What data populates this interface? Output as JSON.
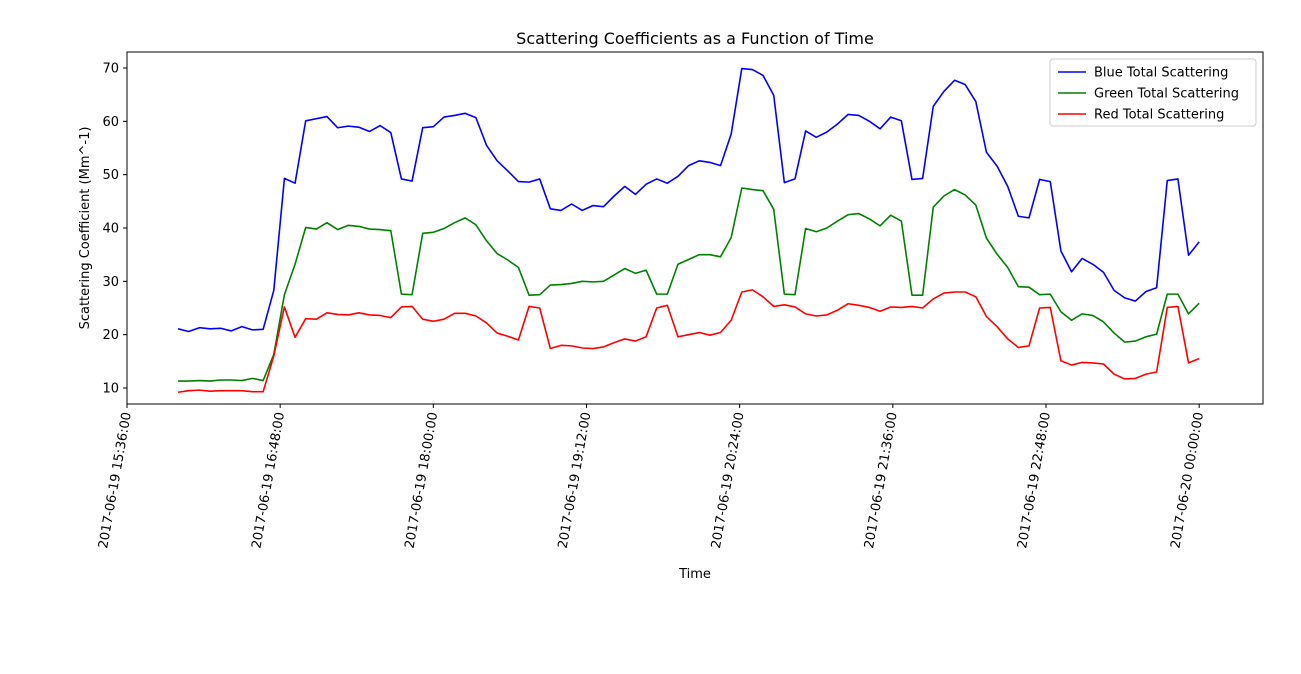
{
  "chart_data": {
    "type": "line",
    "title": "Scattering Coefficients as a Function of Time",
    "xlabel": "Time",
    "ylabel": "Scattering Coefficient (Mm^-1)",
    "xlim": [
      "2017-06-19 15:36:00",
      "2017-06-20 00:30:00"
    ],
    "ylim": [
      7,
      73
    ],
    "x_ticks": [
      "2017-06-19 15:36:00",
      "2017-06-19 16:48:00",
      "2017-06-19 18:00:00",
      "2017-06-19 19:12:00",
      "2017-06-19 20:24:00",
      "2017-06-19 21:36:00",
      "2017-06-19 22:48:00",
      "2017-06-20 00:00:00"
    ],
    "y_ticks": [
      10,
      20,
      30,
      40,
      50,
      60,
      70
    ],
    "legend_position": "top-right",
    "grid": false,
    "x": [
      "2017-06-19 16:00:00",
      "2017-06-19 16:05:00",
      "2017-06-19 16:10:00",
      "2017-06-19 16:15:00",
      "2017-06-19 16:20:00",
      "2017-06-19 16:25:00",
      "2017-06-19 16:30:00",
      "2017-06-19 16:35:00",
      "2017-06-19 16:40:00",
      "2017-06-19 16:45:00",
      "2017-06-19 16:50:00",
      "2017-06-19 16:55:00",
      "2017-06-19 17:00:00",
      "2017-06-19 17:05:00",
      "2017-06-19 17:10:00",
      "2017-06-19 17:15:00",
      "2017-06-19 17:20:00",
      "2017-06-19 17:25:00",
      "2017-06-19 17:30:00",
      "2017-06-19 17:35:00",
      "2017-06-19 17:40:00",
      "2017-06-19 17:45:00",
      "2017-06-19 17:50:00",
      "2017-06-19 17:55:00",
      "2017-06-19 18:00:00",
      "2017-06-19 18:05:00",
      "2017-06-19 18:10:00",
      "2017-06-19 18:15:00",
      "2017-06-19 18:20:00",
      "2017-06-19 18:25:00",
      "2017-06-19 18:30:00",
      "2017-06-19 18:35:00",
      "2017-06-19 18:40:00",
      "2017-06-19 18:45:00",
      "2017-06-19 18:50:00",
      "2017-06-19 18:55:00",
      "2017-06-19 19:00:00",
      "2017-06-19 19:05:00",
      "2017-06-19 19:10:00",
      "2017-06-19 19:15:00",
      "2017-06-19 19:20:00",
      "2017-06-19 19:25:00",
      "2017-06-19 19:30:00",
      "2017-06-19 19:35:00",
      "2017-06-19 19:40:00",
      "2017-06-19 19:45:00",
      "2017-06-19 19:50:00",
      "2017-06-19 19:55:00",
      "2017-06-19 20:00:00",
      "2017-06-19 20:05:00",
      "2017-06-19 20:10:00",
      "2017-06-19 20:15:00",
      "2017-06-19 20:20:00",
      "2017-06-19 20:25:00",
      "2017-06-19 20:30:00",
      "2017-06-19 20:35:00",
      "2017-06-19 20:40:00",
      "2017-06-19 20:45:00",
      "2017-06-19 20:50:00",
      "2017-06-19 20:55:00",
      "2017-06-19 21:00:00",
      "2017-06-19 21:05:00",
      "2017-06-19 21:10:00",
      "2017-06-19 21:15:00",
      "2017-06-19 21:20:00",
      "2017-06-19 21:25:00",
      "2017-06-19 21:30:00",
      "2017-06-19 21:35:00",
      "2017-06-19 21:40:00",
      "2017-06-19 21:45:00",
      "2017-06-19 21:50:00",
      "2017-06-19 21:55:00",
      "2017-06-19 22:00:00",
      "2017-06-19 22:05:00",
      "2017-06-19 22:10:00",
      "2017-06-19 22:15:00",
      "2017-06-19 22:20:00",
      "2017-06-19 22:25:00",
      "2017-06-19 22:30:00",
      "2017-06-19 22:35:00",
      "2017-06-19 22:40:00",
      "2017-06-19 22:45:00",
      "2017-06-19 22:50:00",
      "2017-06-19 22:55:00",
      "2017-06-19 23:00:00",
      "2017-06-19 23:05:00",
      "2017-06-19 23:10:00",
      "2017-06-19 23:15:00",
      "2017-06-19 23:20:00",
      "2017-06-19 23:25:00",
      "2017-06-19 23:30:00",
      "2017-06-19 23:35:00",
      "2017-06-19 23:40:00",
      "2017-06-19 23:45:00",
      "2017-06-19 23:50:00",
      "2017-06-19 23:55:00",
      "2017-06-20 00:00:00"
    ],
    "series": [
      {
        "name": "Blue Total Scattering",
        "color": "#0000ff",
        "values": [
          21.1,
          20.6,
          21.3,
          21.1,
          21.2,
          20.7,
          21.5,
          20.9,
          21.0,
          28.3,
          49.3,
          48.4,
          60.1,
          60.5,
          60.9,
          58.8,
          59.1,
          58.9,
          58.1,
          59.2,
          57.9,
          49.2,
          48.8,
          58.8,
          59.0,
          60.8,
          61.1,
          61.5,
          60.7,
          55.5,
          52.6,
          50.7,
          48.7,
          48.6,
          49.2,
          43.6,
          43.3,
          44.5,
          43.3,
          44.2,
          44.0,
          46.0,
          47.8,
          46.3,
          48.2,
          49.2,
          48.4,
          49.7,
          51.7,
          52.6,
          52.3,
          51.7,
          57.6,
          69.9,
          69.7,
          68.6,
          64.9,
          48.5,
          49.2,
          58.2,
          57.0,
          58.0,
          59.5,
          61.3,
          61.1,
          60.0,
          58.6,
          60.8,
          60.1,
          49.1,
          49.3,
          62.8,
          65.6,
          67.7,
          66.9,
          63.7,
          54.2,
          51.6,
          47.8,
          42.2,
          41.9,
          49.1,
          48.7,
          35.7,
          31.8,
          34.3,
          33.2,
          31.7,
          28.3,
          26.9,
          26.3,
          28.1,
          28.8,
          48.9,
          49.2,
          34.9,
          37.4
        ]
      },
      {
        "name": "Green Total Scattering",
        "color": "#008000",
        "values": [
          11.3,
          11.3,
          11.4,
          11.3,
          11.5,
          11.5,
          11.4,
          11.8,
          11.4,
          16.3,
          27.5,
          33.2,
          40.1,
          39.8,
          41.0,
          39.7,
          40.5,
          40.3,
          39.8,
          39.7,
          39.5,
          27.6,
          27.5,
          39.0,
          39.2,
          39.9,
          41.0,
          41.9,
          40.6,
          37.6,
          35.2,
          34.0,
          32.6,
          27.4,
          27.5,
          29.3,
          29.4,
          29.6,
          30.0,
          29.9,
          30.0,
          31.2,
          32.4,
          31.5,
          32.1,
          27.6,
          27.6,
          33.2,
          34.1,
          35.0,
          35.0,
          34.6,
          38.2,
          47.5,
          47.2,
          47.0,
          43.5,
          27.6,
          27.5,
          39.9,
          39.3,
          40.0,
          41.3,
          42.5,
          42.7,
          41.7,
          40.4,
          42.4,
          41.3,
          27.4,
          27.4,
          43.9,
          46.0,
          47.2,
          46.2,
          44.3,
          38.1,
          35.1,
          32.6,
          29.0,
          28.9,
          27.5,
          27.6,
          24.3,
          22.7,
          23.9,
          23.6,
          22.4,
          20.3,
          18.6,
          18.8,
          19.6,
          20.1,
          27.6,
          27.6,
          23.9,
          25.9
        ]
      },
      {
        "name": "Red Total Scattering",
        "color": "#ff0000",
        "values": [
          9.2,
          9.5,
          9.6,
          9.4,
          9.5,
          9.5,
          9.5,
          9.3,
          9.3,
          16.0,
          25.2,
          19.5,
          23.0,
          22.9,
          24.1,
          23.8,
          23.7,
          24.1,
          23.7,
          23.6,
          23.2,
          25.2,
          25.3,
          22.9,
          22.5,
          22.9,
          24.0,
          24.0,
          23.5,
          22.2,
          20.3,
          19.7,
          19.0,
          25.3,
          25.0,
          17.4,
          18.0,
          17.9,
          17.5,
          17.4,
          17.7,
          18.5,
          19.2,
          18.8,
          19.6,
          25.0,
          25.5,
          19.6,
          20.0,
          20.4,
          19.9,
          20.4,
          22.7,
          28.0,
          28.4,
          27.1,
          25.3,
          25.6,
          25.2,
          23.9,
          23.5,
          23.7,
          24.6,
          25.8,
          25.5,
          25.1,
          24.4,
          25.2,
          25.1,
          25.3,
          25.0,
          26.7,
          27.8,
          28.0,
          28.0,
          27.1,
          23.4,
          21.5,
          19.2,
          17.6,
          17.9,
          25.0,
          25.1,
          15.1,
          14.3,
          14.8,
          14.7,
          14.5,
          12.6,
          11.7,
          11.8,
          12.6,
          13.0,
          25.1,
          25.3,
          14.7,
          15.5
        ]
      }
    ]
  }
}
